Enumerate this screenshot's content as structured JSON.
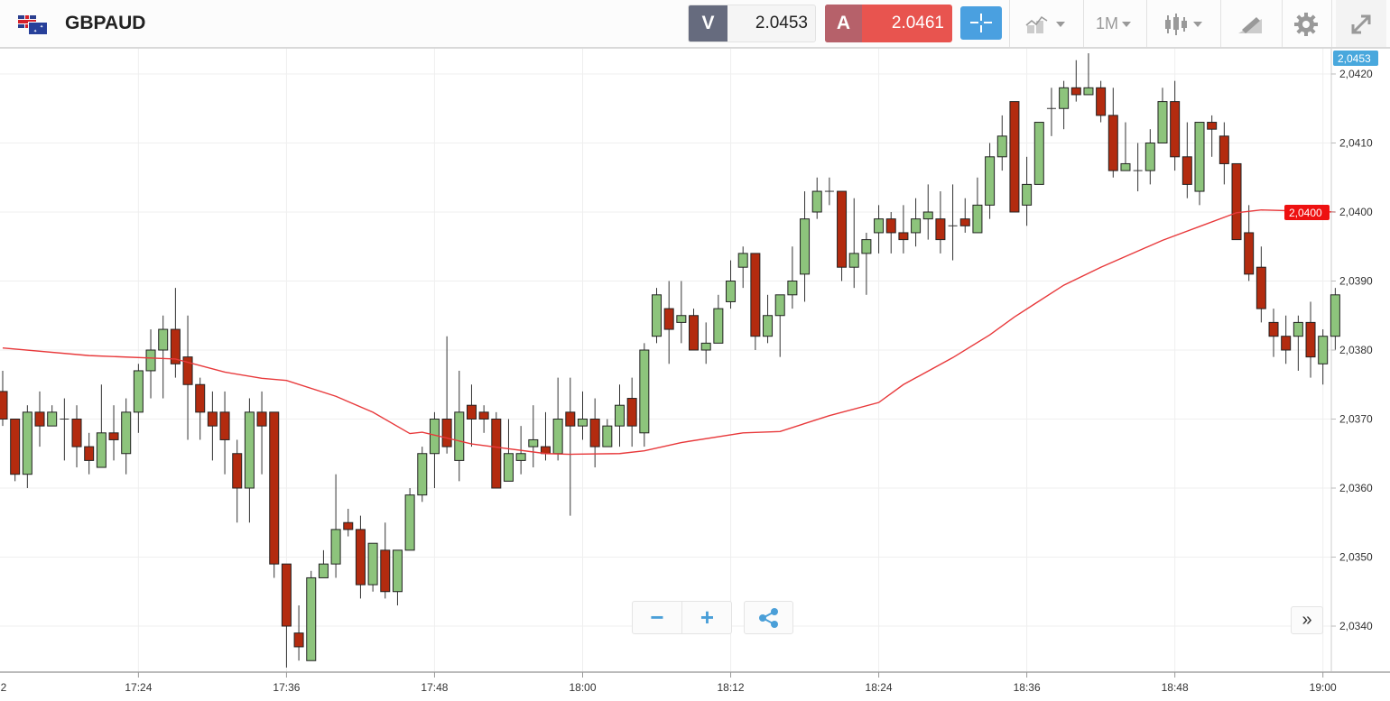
{
  "header": {
    "symbol": "GBPAUD",
    "flags_icon": "gb-au-flags-icon",
    "sell": {
      "label": "V",
      "price": "2.0453"
    },
    "buy": {
      "label": "A",
      "price": "2.0461"
    },
    "crosshair_icon": "crosshair-icon",
    "tools": {
      "indicators_icon": "indicators-icon",
      "timeframe": "1M",
      "chart_type_icon": "candlestick-icon",
      "draw_icon": "drawing-icon",
      "settings_icon": "gear-icon",
      "fullscreen_icon": "expand-icon"
    }
  },
  "controls": {
    "zoom_out": "−",
    "zoom_in": "+",
    "share_icon": "share-icon",
    "scroll_end": "»"
  },
  "colors": {
    "up": "#8dc47c",
    "down": "#b32b0f",
    "ma": "#e8393b",
    "bid_tag": "#49a8dd",
    "ma_tag": "#ee1111"
  },
  "chart_data": {
    "type": "candlestick",
    "symbol": "GBPAUD",
    "interval": "1M",
    "start_time": "17:13",
    "ylim": [
      2.0333,
      2.0424
    ],
    "grid": true,
    "y_ticks": [
      {
        "value": 2.042,
        "label": "2,0420"
      },
      {
        "value": 2.041,
        "label": "2,0410"
      },
      {
        "value": 2.04,
        "label": "2,0400"
      },
      {
        "value": 2.039,
        "label": "2,0390"
      },
      {
        "value": 2.038,
        "label": "2,0380"
      },
      {
        "value": 2.037,
        "label": "2,0370"
      },
      {
        "value": 2.036,
        "label": "2,0360"
      },
      {
        "value": 2.035,
        "label": "2,0350"
      },
      {
        "value": 2.034,
        "label": "2,0340"
      }
    ],
    "x_ticks": [
      {
        "minute": -1,
        "label": "2"
      },
      {
        "minute": 11,
        "label": "17:24"
      },
      {
        "minute": 23,
        "label": "17:36"
      },
      {
        "minute": 35,
        "label": "17:48"
      },
      {
        "minute": 47,
        "label": "18:00"
      },
      {
        "minute": 59,
        "label": "18:12"
      },
      {
        "minute": 71,
        "label": "18:24"
      },
      {
        "minute": 83,
        "label": "18:36"
      },
      {
        "minute": 95,
        "label": "18:48"
      },
      {
        "minute": 107,
        "label": "19:00"
      }
    ],
    "price_tags": [
      {
        "value": 2.0453,
        "label": "2,0453",
        "kind": "bid"
      },
      {
        "value": 2.04,
        "label": "2,0400",
        "kind": "ma"
      }
    ],
    "ohlc_fields": [
      "open",
      "high",
      "low",
      "close"
    ],
    "candles": [
      [
        2.0374,
        2.0377,
        2.0369,
        2.037
      ],
      [
        2.037,
        2.037,
        2.0361,
        2.0362
      ],
      [
        2.0362,
        2.0372,
        2.036,
        2.0371
      ],
      [
        2.0371,
        2.0374,
        2.0366,
        2.0369
      ],
      [
        2.0369,
        2.0372,
        2.0369,
        2.0371
      ],
      [
        2.037,
        2.0373,
        2.0364,
        2.037
      ],
      [
        2.037,
        2.0372,
        2.0363,
        2.0366
      ],
      [
        2.0366,
        2.0368,
        2.0362,
        2.0364
      ],
      [
        2.0363,
        2.0375,
        2.0363,
        2.0368
      ],
      [
        2.0368,
        2.0372,
        2.0364,
        2.0367
      ],
      [
        2.0365,
        2.0373,
        2.0362,
        2.0371
      ],
      [
        2.0371,
        2.0378,
        2.0368,
        2.0377
      ],
      [
        2.0377,
        2.0383,
        2.0373,
        2.038
      ],
      [
        2.038,
        2.0385,
        2.0373,
        2.0383
      ],
      [
        2.0383,
        2.0389,
        2.0376,
        2.0378
      ],
      [
        2.0379,
        2.0385,
        2.0367,
        2.0375
      ],
      [
        2.0375,
        2.0376,
        2.0367,
        2.0371
      ],
      [
        2.0371,
        2.0374,
        2.0364,
        2.0369
      ],
      [
        2.0371,
        2.0374,
        2.0362,
        2.0367
      ],
      [
        2.0365,
        2.0367,
        2.0355,
        2.036
      ],
      [
        2.036,
        2.0373,
        2.0355,
        2.0371
      ],
      [
        2.0371,
        2.0374,
        2.0362,
        2.0369
      ],
      [
        2.0371,
        2.0371,
        2.0347,
        2.0349
      ],
      [
        2.0349,
        2.0349,
        2.0334,
        2.034
      ],
      [
        2.0339,
        2.0343,
        2.0335,
        2.0337
      ],
      [
        2.0335,
        2.0348,
        2.0335,
        2.0347
      ],
      [
        2.0347,
        2.0351,
        2.0347,
        2.0349
      ],
      [
        2.0349,
        2.0362,
        2.0347,
        2.0354
      ],
      [
        2.0355,
        2.0357,
        2.0353,
        2.0354
      ],
      [
        2.0354,
        2.0356,
        2.0344,
        2.0346
      ],
      [
        2.0346,
        2.0352,
        2.0345,
        2.0352
      ],
      [
        2.0351,
        2.0355,
        2.0344,
        2.0345
      ],
      [
        2.0345,
        2.0351,
        2.0343,
        2.0351
      ],
      [
        2.0351,
        2.036,
        2.0351,
        2.0359
      ],
      [
        2.0359,
        2.0366,
        2.0358,
        2.0365
      ],
      [
        2.0365,
        2.0371,
        2.036,
        2.037
      ],
      [
        2.037,
        2.0382,
        2.0365,
        2.0366
      ],
      [
        2.0364,
        2.0377,
        2.0361,
        2.0371
      ],
      [
        2.0372,
        2.0375,
        2.0366,
        2.037
      ],
      [
        2.0371,
        2.0372,
        2.0368,
        2.037
      ],
      [
        2.037,
        2.0371,
        2.036,
        2.036
      ],
      [
        2.0361,
        2.037,
        2.0361,
        2.0365
      ],
      [
        2.0364,
        2.0369,
        2.0362,
        2.0365
      ],
      [
        2.0366,
        2.0372,
        2.0363,
        2.0367
      ],
      [
        2.0366,
        2.0371,
        2.0364,
        2.0365
      ],
      [
        2.0365,
        2.0376,
        2.0364,
        2.037
      ],
      [
        2.0371,
        2.0376,
        2.0356,
        2.0369
      ],
      [
        2.0369,
        2.0374,
        2.0367,
        2.037
      ],
      [
        2.037,
        2.0373,
        2.0363,
        2.0366
      ],
      [
        2.0366,
        2.037,
        2.0366,
        2.0369
      ],
      [
        2.0369,
        2.0375,
        2.0366,
        2.0372
      ],
      [
        2.0373,
        2.0376,
        2.0366,
        2.0369
      ],
      [
        2.0368,
        2.0381,
        2.0366,
        2.038
      ],
      [
        2.0382,
        2.0389,
        2.0381,
        2.0388
      ],
      [
        2.0386,
        2.039,
        2.0378,
        2.0383
      ],
      [
        2.0384,
        2.039,
        2.0381,
        2.0385
      ],
      [
        2.0385,
        2.0386,
        2.038,
        2.038
      ],
      [
        2.038,
        2.0384,
        2.0378,
        2.0381
      ],
      [
        2.0381,
        2.0388,
        2.0381,
        2.0386
      ],
      [
        2.0387,
        2.0393,
        2.0386,
        2.039
      ],
      [
        2.0392,
        2.0395,
        2.0389,
        2.0394
      ],
      [
        2.0394,
        2.0394,
        2.038,
        2.0382
      ],
      [
        2.0382,
        2.0388,
        2.0381,
        2.0385
      ],
      [
        2.0385,
        2.0388,
        2.0379,
        2.0388
      ],
      [
        2.0388,
        2.0395,
        2.0386,
        2.039
      ],
      [
        2.0391,
        2.0403,
        2.0387,
        2.0399
      ],
      [
        2.04,
        2.0405,
        2.0399,
        2.0403
      ],
      [
        2.0403,
        2.0405,
        2.0401,
        2.0403
      ],
      [
        2.0403,
        2.0403,
        2.039,
        2.0392
      ],
      [
        2.0392,
        2.0402,
        2.0389,
        2.0394
      ],
      [
        2.0394,
        2.0397,
        2.0388,
        2.0396
      ],
      [
        2.0397,
        2.0401,
        2.0394,
        2.0399
      ],
      [
        2.0399,
        2.04,
        2.0394,
        2.0397
      ],
      [
        2.0397,
        2.0401,
        2.0394,
        2.0396
      ],
      [
        2.0397,
        2.0402,
        2.0395,
        2.0399
      ],
      [
        2.0399,
        2.0404,
        2.0396,
        2.04
      ],
      [
        2.0399,
        2.0403,
        2.0394,
        2.0396
      ],
      [
        2.0398,
        2.0404,
        2.0393,
        2.0398
      ],
      [
        2.0399,
        2.0402,
        2.0397,
        2.0398
      ],
      [
        2.0397,
        2.0405,
        2.0397,
        2.0401
      ],
      [
        2.0401,
        2.041,
        2.0399,
        2.0408
      ],
      [
        2.0408,
        2.0414,
        2.0406,
        2.0411
      ],
      [
        2.0416,
        2.0416,
        2.04,
        2.04
      ],
      [
        2.0401,
        2.0408,
        2.0398,
        2.0404
      ],
      [
        2.0404,
        2.0413,
        2.0404,
        2.0413
      ],
      [
        2.0415,
        2.0418,
        2.0411,
        2.0415
      ],
      [
        2.0415,
        2.0419,
        2.0412,
        2.0418
      ],
      [
        2.0418,
        2.0422,
        2.0416,
        2.0417
      ],
      [
        2.0417,
        2.0423,
        2.0417,
        2.0418
      ],
      [
        2.0418,
        2.0419,
        2.0413,
        2.0414
      ],
      [
        2.0414,
        2.0418,
        2.0405,
        2.0406
      ],
      [
        2.0406,
        2.0413,
        2.0406,
        2.0407
      ],
      [
        2.0406,
        2.041,
        2.0403,
        2.0406
      ],
      [
        2.0406,
        2.0412,
        2.0404,
        2.041
      ],
      [
        2.041,
        2.0418,
        2.041,
        2.0416
      ],
      [
        2.0416,
        2.0419,
        2.0406,
        2.0408
      ],
      [
        2.0408,
        2.0413,
        2.0402,
        2.0404
      ],
      [
        2.0403,
        2.0413,
        2.0401,
        2.0413
      ],
      [
        2.0413,
        2.0414,
        2.0408,
        2.0412
      ],
      [
        2.0411,
        2.0413,
        2.0404,
        2.0407
      ],
      [
        2.0407,
        2.0407,
        2.0396,
        2.0396
      ],
      [
        2.0397,
        2.0401,
        2.039,
        2.0391
      ],
      [
        2.0392,
        2.0395,
        2.0384,
        2.0386
      ],
      [
        2.0384,
        2.0386,
        2.0379,
        2.0382
      ],
      [
        2.0382,
        2.0385,
        2.0378,
        2.038
      ],
      [
        2.0382,
        2.0385,
        2.0377,
        2.0384
      ],
      [
        2.0384,
        2.0387,
        2.0376,
        2.0379
      ],
      [
        2.0378,
        2.0383,
        2.0375,
        2.0382
      ],
      [
        2.0382,
        2.0389,
        2.038,
        2.0388
      ]
    ],
    "moving_average": [
      [
        0,
        2.03803
      ],
      [
        7,
        2.03792
      ],
      [
        14,
        2.03787
      ],
      [
        18,
        2.03768
      ],
      [
        21,
        2.03759
      ],
      [
        23,
        2.03756
      ],
      [
        27,
        2.03733
      ],
      [
        30,
        2.0371
      ],
      [
        33,
        2.03679
      ],
      [
        34,
        2.03681
      ],
      [
        38,
        2.03664
      ],
      [
        44,
        2.0365
      ],
      [
        46,
        2.03649
      ],
      [
        50,
        2.0365
      ],
      [
        52,
        2.03654
      ],
      [
        55,
        2.03666
      ],
      [
        60,
        2.0368
      ],
      [
        63,
        2.03682
      ],
      [
        67,
        2.03705
      ],
      [
        71,
        2.03724
      ],
      [
        73,
        2.0375
      ],
      [
        77,
        2.03789
      ],
      [
        80,
        2.03822
      ],
      [
        82,
        2.03848
      ],
      [
        86,
        2.03894
      ],
      [
        89,
        2.0392
      ],
      [
        94,
        2.03959
      ],
      [
        97,
        2.03979
      ],
      [
        100,
        2.03999
      ],
      [
        102,
        2.04003
      ],
      [
        108,
        2.04
      ]
    ]
  }
}
